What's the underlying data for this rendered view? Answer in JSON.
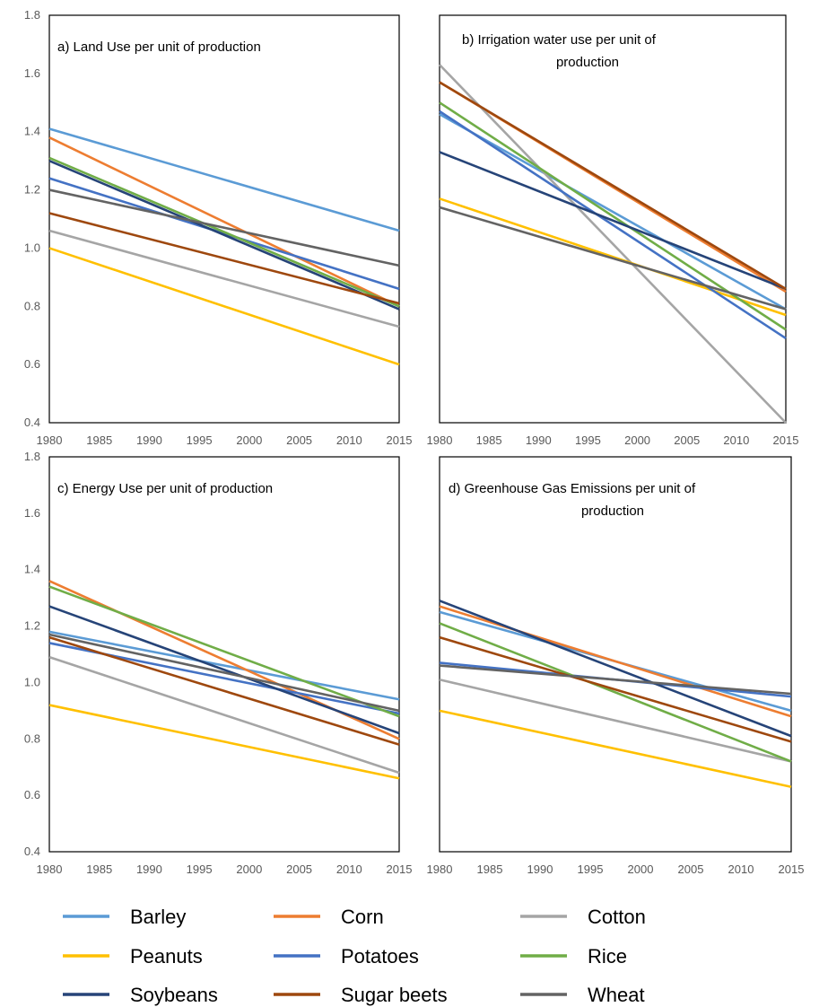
{
  "legend": [
    "Barley",
    "Corn",
    "Cotton",
    "Peanuts",
    "Potatoes",
    "Rice",
    "Soybeans",
    "Sugar beets",
    "Wheat"
  ],
  "colors": {
    "Barley": "#5B9BD5",
    "Corn": "#ED7D31",
    "Cotton": "#A5A5A5",
    "Peanuts": "#FFC000",
    "Potatoes": "#4472C4",
    "Rice": "#70AD47",
    "Soybeans": "#264478",
    "Sugar beets": "#9E480E",
    "Wheat": "#636363"
  },
  "chart_data": [
    {
      "type": "line",
      "title": "a) Land Use per unit of production",
      "x": [
        1980,
        2015
      ],
      "xticks": [
        "1980",
        "1985",
        "1990",
        "1995",
        "2000",
        "2005",
        "2010",
        "2015"
      ],
      "yticks": [
        "0.4",
        "0.6",
        "0.8",
        "1.0",
        "1.2",
        "1.4",
        "1.6",
        "1.8"
      ],
      "xlim": [
        1980,
        2015
      ],
      "ylim": [
        0.4,
        1.8
      ],
      "series": [
        {
          "name": "Barley",
          "values": [
            1.41,
            1.06
          ]
        },
        {
          "name": "Corn",
          "values": [
            1.38,
            0.8
          ]
        },
        {
          "name": "Cotton",
          "values": [
            1.06,
            0.73
          ]
        },
        {
          "name": "Peanuts",
          "values": [
            1.0,
            0.6
          ]
        },
        {
          "name": "Potatoes",
          "values": [
            1.24,
            0.86
          ]
        },
        {
          "name": "Rice",
          "values": [
            1.31,
            0.8
          ]
        },
        {
          "name": "Soybeans",
          "values": [
            1.3,
            0.79
          ]
        },
        {
          "name": "Sugar beets",
          "values": [
            1.12,
            0.81
          ]
        },
        {
          "name": "Wheat",
          "values": [
            1.2,
            0.94
          ]
        }
      ]
    },
    {
      "type": "line",
      "title": "b) Irrigation water use per unit of production",
      "x": [
        1980,
        2015
      ],
      "xticks": [
        "1980",
        "1985",
        "1990",
        "1995",
        "2000",
        "2005",
        "2010",
        "2015"
      ],
      "yticks": [],
      "xlim": [
        1980,
        2015
      ],
      "ylim": [
        0.4,
        1.8
      ],
      "series": [
        {
          "name": "Barley",
          "values": [
            1.46,
            0.79
          ]
        },
        {
          "name": "Corn",
          "values": [
            1.57,
            0.85
          ]
        },
        {
          "name": "Cotton",
          "values": [
            1.63,
            0.4
          ]
        },
        {
          "name": "Peanuts",
          "values": [
            1.17,
            0.77
          ]
        },
        {
          "name": "Potatoes",
          "values": [
            1.47,
            0.69
          ]
        },
        {
          "name": "Rice",
          "values": [
            1.5,
            0.72
          ]
        },
        {
          "name": "Soybeans",
          "values": [
            1.33,
            0.86
          ]
        },
        {
          "name": "Sugar beets",
          "values": [
            1.57,
            0.86
          ]
        },
        {
          "name": "Wheat",
          "values": [
            1.14,
            0.79
          ]
        }
      ]
    },
    {
      "type": "line",
      "title": "c) Energy Use per unit of production",
      "x": [
        1980,
        2015
      ],
      "xticks": [
        "1980",
        "1985",
        "1990",
        "1995",
        "2000",
        "2005",
        "2010",
        "2015"
      ],
      "yticks": [
        "0.4",
        "0.6",
        "0.8",
        "1.0",
        "1.2",
        "1.4",
        "1.6",
        "1.8"
      ],
      "xlim": [
        1980,
        2015
      ],
      "ylim": [
        0.4,
        1.8
      ],
      "series": [
        {
          "name": "Barley",
          "values": [
            1.18,
            0.94
          ]
        },
        {
          "name": "Corn",
          "values": [
            1.36,
            0.8
          ]
        },
        {
          "name": "Cotton",
          "values": [
            1.09,
            0.68
          ]
        },
        {
          "name": "Peanuts",
          "values": [
            0.92,
            0.66
          ]
        },
        {
          "name": "Potatoes",
          "values": [
            1.14,
            0.89
          ]
        },
        {
          "name": "Rice",
          "values": [
            1.34,
            0.88
          ]
        },
        {
          "name": "Soybeans",
          "values": [
            1.27,
            0.82
          ]
        },
        {
          "name": "Sugar beets",
          "values": [
            1.16,
            0.78
          ]
        },
        {
          "name": "Wheat",
          "values": [
            1.17,
            0.9
          ]
        }
      ]
    },
    {
      "type": "line",
      "title": "d) Greenhouse Gas Emissions per unit of production",
      "x": [
        1980,
        2015
      ],
      "xticks": [
        "1980",
        "1985",
        "1990",
        "1995",
        "2000",
        "2005",
        "2010",
        "2015"
      ],
      "yticks": [],
      "xlim": [
        1980,
        2015
      ],
      "ylim": [
        0.4,
        1.8
      ],
      "series": [
        {
          "name": "Barley",
          "values": [
            1.25,
            0.9
          ]
        },
        {
          "name": "Corn",
          "values": [
            1.27,
            0.88
          ]
        },
        {
          "name": "Cotton",
          "values": [
            1.01,
            0.72
          ]
        },
        {
          "name": "Peanuts",
          "values": [
            0.9,
            0.63
          ]
        },
        {
          "name": "Potatoes",
          "values": [
            1.07,
            0.95
          ]
        },
        {
          "name": "Rice",
          "values": [
            1.21,
            0.72
          ]
        },
        {
          "name": "Soybeans",
          "values": [
            1.29,
            0.81
          ]
        },
        {
          "name": "Sugar beets",
          "values": [
            1.16,
            0.79
          ]
        },
        {
          "name": "Wheat",
          "values": [
            1.06,
            0.96
          ]
        }
      ]
    }
  ]
}
